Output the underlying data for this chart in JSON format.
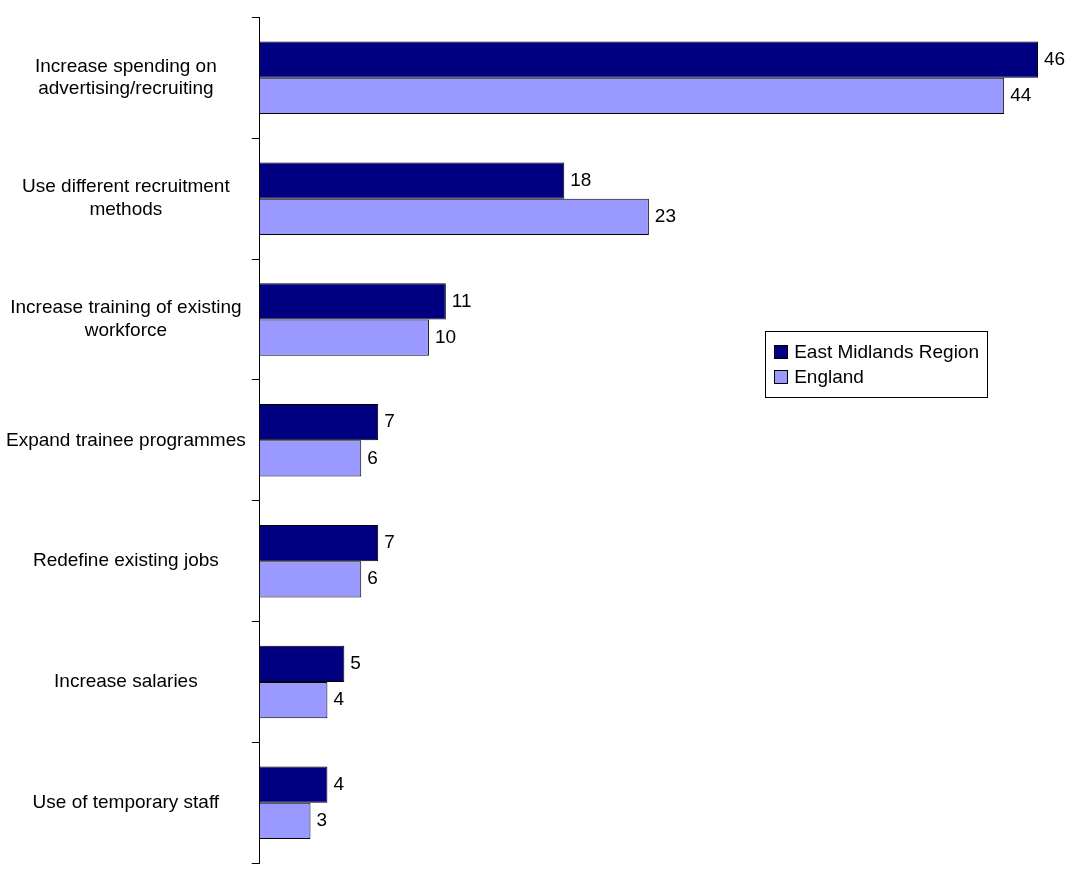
{
  "chart_data": {
    "type": "bar",
    "orientation": "horizontal",
    "categories": [
      "Increase spending on advertising/recruiting",
      "Use different recruitment methods",
      "Increase training of existing workforce",
      "Expand trainee programmes",
      "Redefine existing jobs",
      "Increase salaries",
      "Use of temporary staff"
    ],
    "series": [
      {
        "name": "East Midlands Region",
        "color": "#000080",
        "values": [
          46,
          18,
          11,
          7,
          7,
          5,
          4
        ]
      },
      {
        "name": "England",
        "color": "#9999ff",
        "values": [
          44,
          23,
          10,
          6,
          6,
          4,
          3
        ]
      }
    ],
    "xlim": [
      0,
      46
    ],
    "tick_labels": "y",
    "data_labels": true,
    "legend": "right",
    "grid": false
  }
}
